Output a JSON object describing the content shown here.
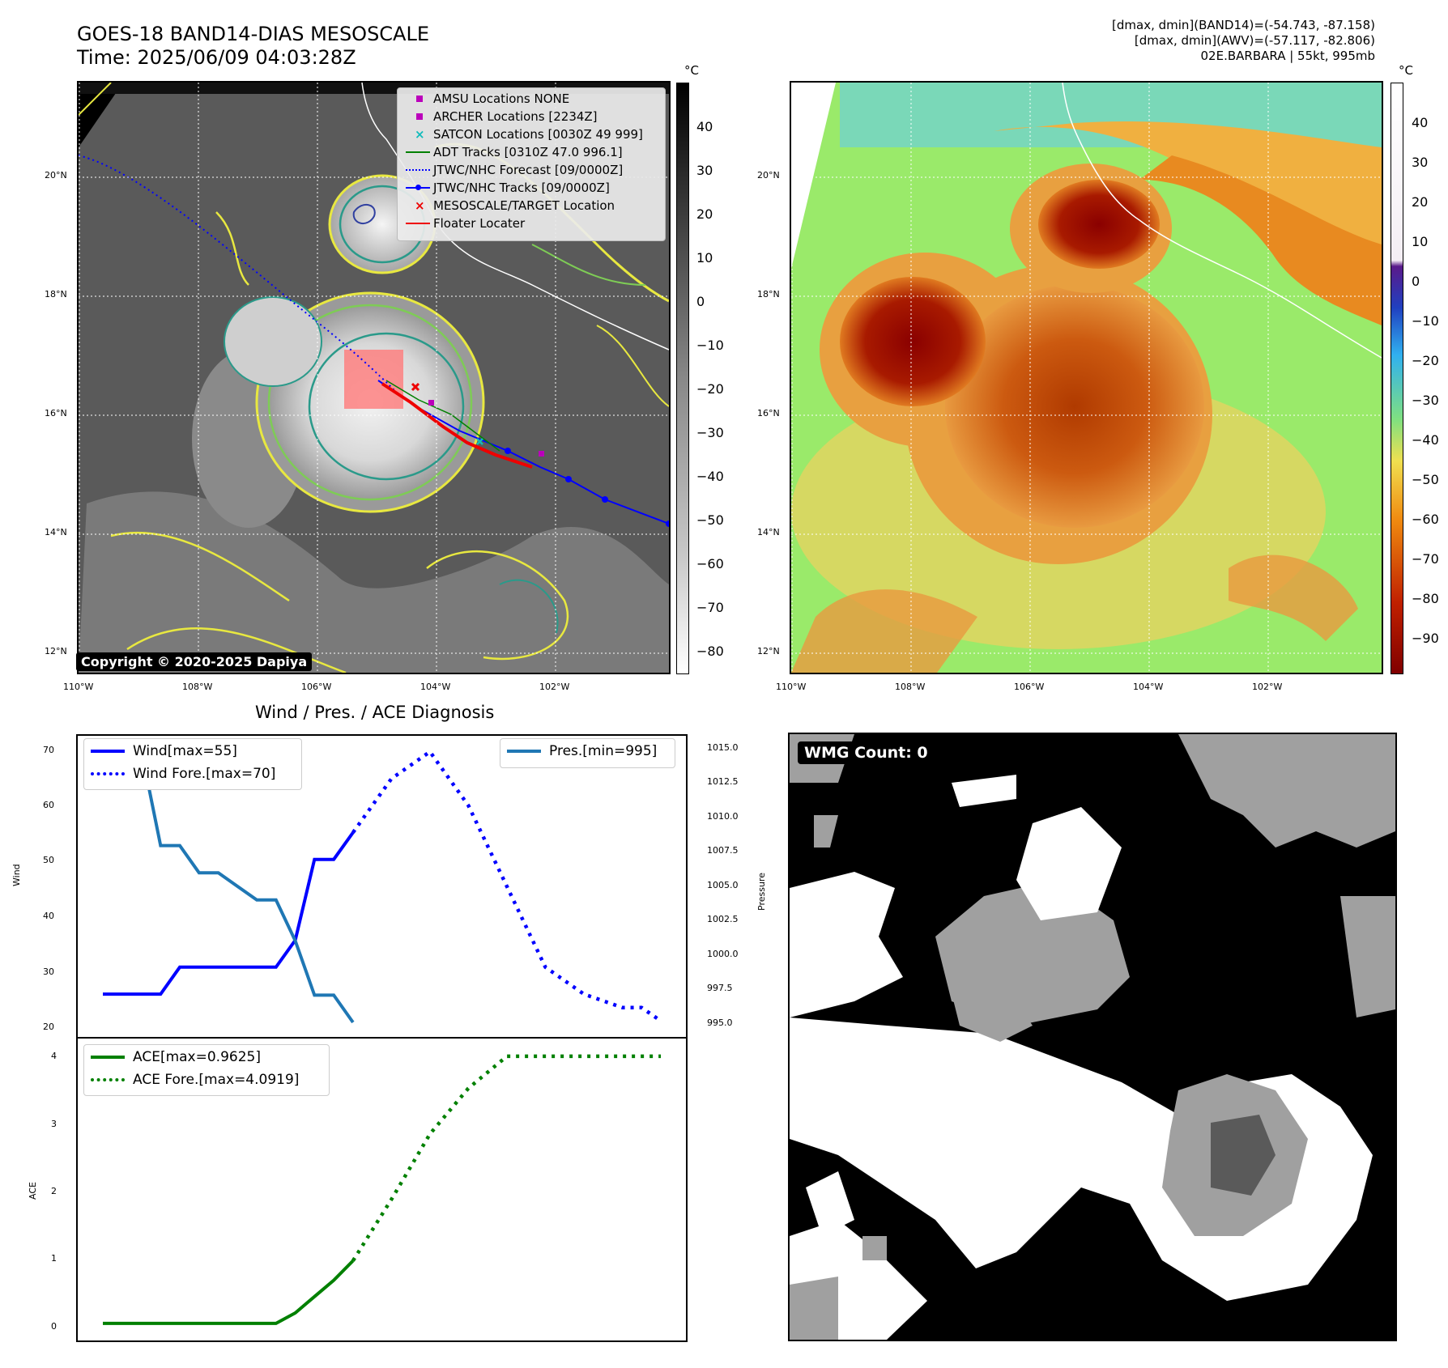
{
  "header": {
    "title_line1": "GOES-18 BAND14-DIAS MESOSCALE",
    "title_line2": "Time: 2025/06/09 04:03:28Z",
    "stats_line1": "[dmax, dmin](BAND14)=(-54.743, -87.158)",
    "stats_line2": "[dmax, dmin](AWV)=(-57.117, -82.806)",
    "stats_line3": "02E.BARBARA | 55kt, 995mb"
  },
  "map_axes": {
    "lon_labels": [
      "110°W",
      "108°W",
      "106°W",
      "104°W",
      "102°W"
    ],
    "lat_labels": [
      "20°N",
      "18°N",
      "16°N",
      "14°N",
      "12°N"
    ]
  },
  "ir_panel": {
    "colorbar_unit": "°C",
    "colorbar_ticks": [
      "40",
      "30",
      "20",
      "10",
      "0",
      "−10",
      "−20",
      "−30",
      "−40",
      "−50",
      "−60",
      "−70",
      "−80"
    ],
    "legend": [
      {
        "label": "AMSU Locations NONE",
        "symbol": "square",
        "color": "#bb00bb"
      },
      {
        "label": "ARCHER Locations [2234Z]",
        "symbol": "square",
        "color": "#bb00bb"
      },
      {
        "label": "SATCON Locations [0030Z 49 999]",
        "symbol": "x",
        "color": "#11bbbb"
      },
      {
        "label": "ADT Tracks [0310Z 47.0 996.1]",
        "symbol": "line",
        "color": "#008000"
      },
      {
        "label": "JTWC/NHC Forecast [09/0000Z]",
        "symbol": "dotted",
        "color": "#0000ff"
      },
      {
        "label": "JTWC/NHC Tracks [09/0000Z]",
        "symbol": "line-dot",
        "color": "#0000ff"
      },
      {
        "label": "MESOSCALE/TARGET Location",
        "symbol": "x",
        "color": "#ee0000"
      },
      {
        "label": "Floater Locater",
        "symbol": "line",
        "color": "#ee0000"
      }
    ],
    "copyright": "Copyright © 2020-2025 Dapiya"
  },
  "awv_panel": {
    "colorbar_unit": "°C",
    "colorbar_ticks": [
      "40",
      "30",
      "20",
      "10",
      "0",
      "−10",
      "−20",
      "−30",
      "−40",
      "−50",
      "−60",
      "−70",
      "−80",
      "−90"
    ]
  },
  "diag_panel": {
    "title": "Wind / Pres. / ACE Diagnosis",
    "wind_ylabel": "Wind",
    "pres_ylabel": "Pressure",
    "ace_ylabel": "ACE",
    "wind_ticks": [
      "70",
      "60",
      "50",
      "40",
      "30",
      "20"
    ],
    "pres_ticks": [
      "1015.0",
      "1012.5",
      "1010.0",
      "1007.5",
      "1005.0",
      "1002.5",
      "1000.0",
      "997.5",
      "995.0"
    ],
    "ace_ticks": [
      "4",
      "3",
      "2",
      "1",
      "0"
    ],
    "legend_wind": "Wind[max=55]",
    "legend_wind_fore": "Wind Fore.[max=70]",
    "legend_pres": "Pres.[min=995]",
    "legend_ace": "ACE[max=0.9625]",
    "legend_ace_fore": "ACE Fore.[max=4.0919]"
  },
  "wmg_panel": {
    "label": "WMG Count: 0"
  },
  "chart_data": [
    {
      "type": "line",
      "title": "Wind / Pres. / ACE Diagnosis",
      "ylabel": "Wind",
      "ylim": [
        19,
        71
      ],
      "x": [
        0,
        1,
        2,
        3,
        4,
        5,
        6,
        7,
        8,
        9,
        10,
        11,
        12,
        13,
        14,
        15,
        16,
        17,
        18,
        19,
        20,
        21,
        22,
        23,
        24,
        25,
        26,
        27,
        28,
        29
      ],
      "series": [
        {
          "name": "Wind[max=55]",
          "color": "#0000ff",
          "style": "solid",
          "x": [
            0,
            1,
            2,
            3,
            4,
            5,
            6,
            7,
            8,
            9,
            10,
            11,
            12,
            13
          ],
          "values": [
            25,
            25,
            25,
            25,
            30,
            30,
            30,
            30,
            30,
            30,
            35,
            50,
            50,
            55
          ]
        },
        {
          "name": "Wind Fore.[max=70]",
          "color": "#0000ff",
          "style": "dotted",
          "x": [
            13,
            15,
            17,
            19,
            21,
            23,
            25,
            27,
            28,
            29
          ],
          "values": [
            55,
            65,
            70,
            60,
            45,
            30,
            25,
            22.5,
            22.5,
            20
          ]
        },
        {
          "name": "Pres.[min=995]",
          "color": "#1f77b4",
          "style": "solid",
          "axis": "right",
          "ylim": [
            994.7,
            1015.3
          ],
          "x": [
            0,
            1,
            2,
            3,
            4,
            5,
            6,
            7,
            8,
            9,
            10,
            11,
            12,
            13
          ],
          "values": [
            1015,
            1015,
            1015,
            1008,
            1008,
            1006,
            1006,
            1005,
            1004,
            1004,
            1001,
            997,
            997,
            995
          ]
        }
      ]
    },
    {
      "type": "line",
      "ylabel": "ACE",
      "ylim": [
        -0.1,
        4.2
      ],
      "series": [
        {
          "name": "ACE[max=0.9625]",
          "color": "#008000",
          "style": "solid",
          "x": [
            0,
            1,
            2,
            3,
            4,
            5,
            6,
            7,
            8,
            9,
            10,
            11,
            12,
            13
          ],
          "values": [
            0,
            0,
            0,
            0,
            0,
            0,
            0,
            0,
            0,
            0,
            0.16,
            0.41,
            0.66,
            0.96
          ]
        },
        {
          "name": "ACE Fore.[max=4.0919]",
          "color": "#008000",
          "style": "dotted",
          "x": [
            13,
            15,
            17,
            19,
            21,
            23,
            25,
            27,
            29
          ],
          "values": [
            0.96,
            1.9,
            2.9,
            3.6,
            4.09,
            4.09,
            4.09,
            4.09,
            4.09
          ]
        }
      ]
    }
  ]
}
